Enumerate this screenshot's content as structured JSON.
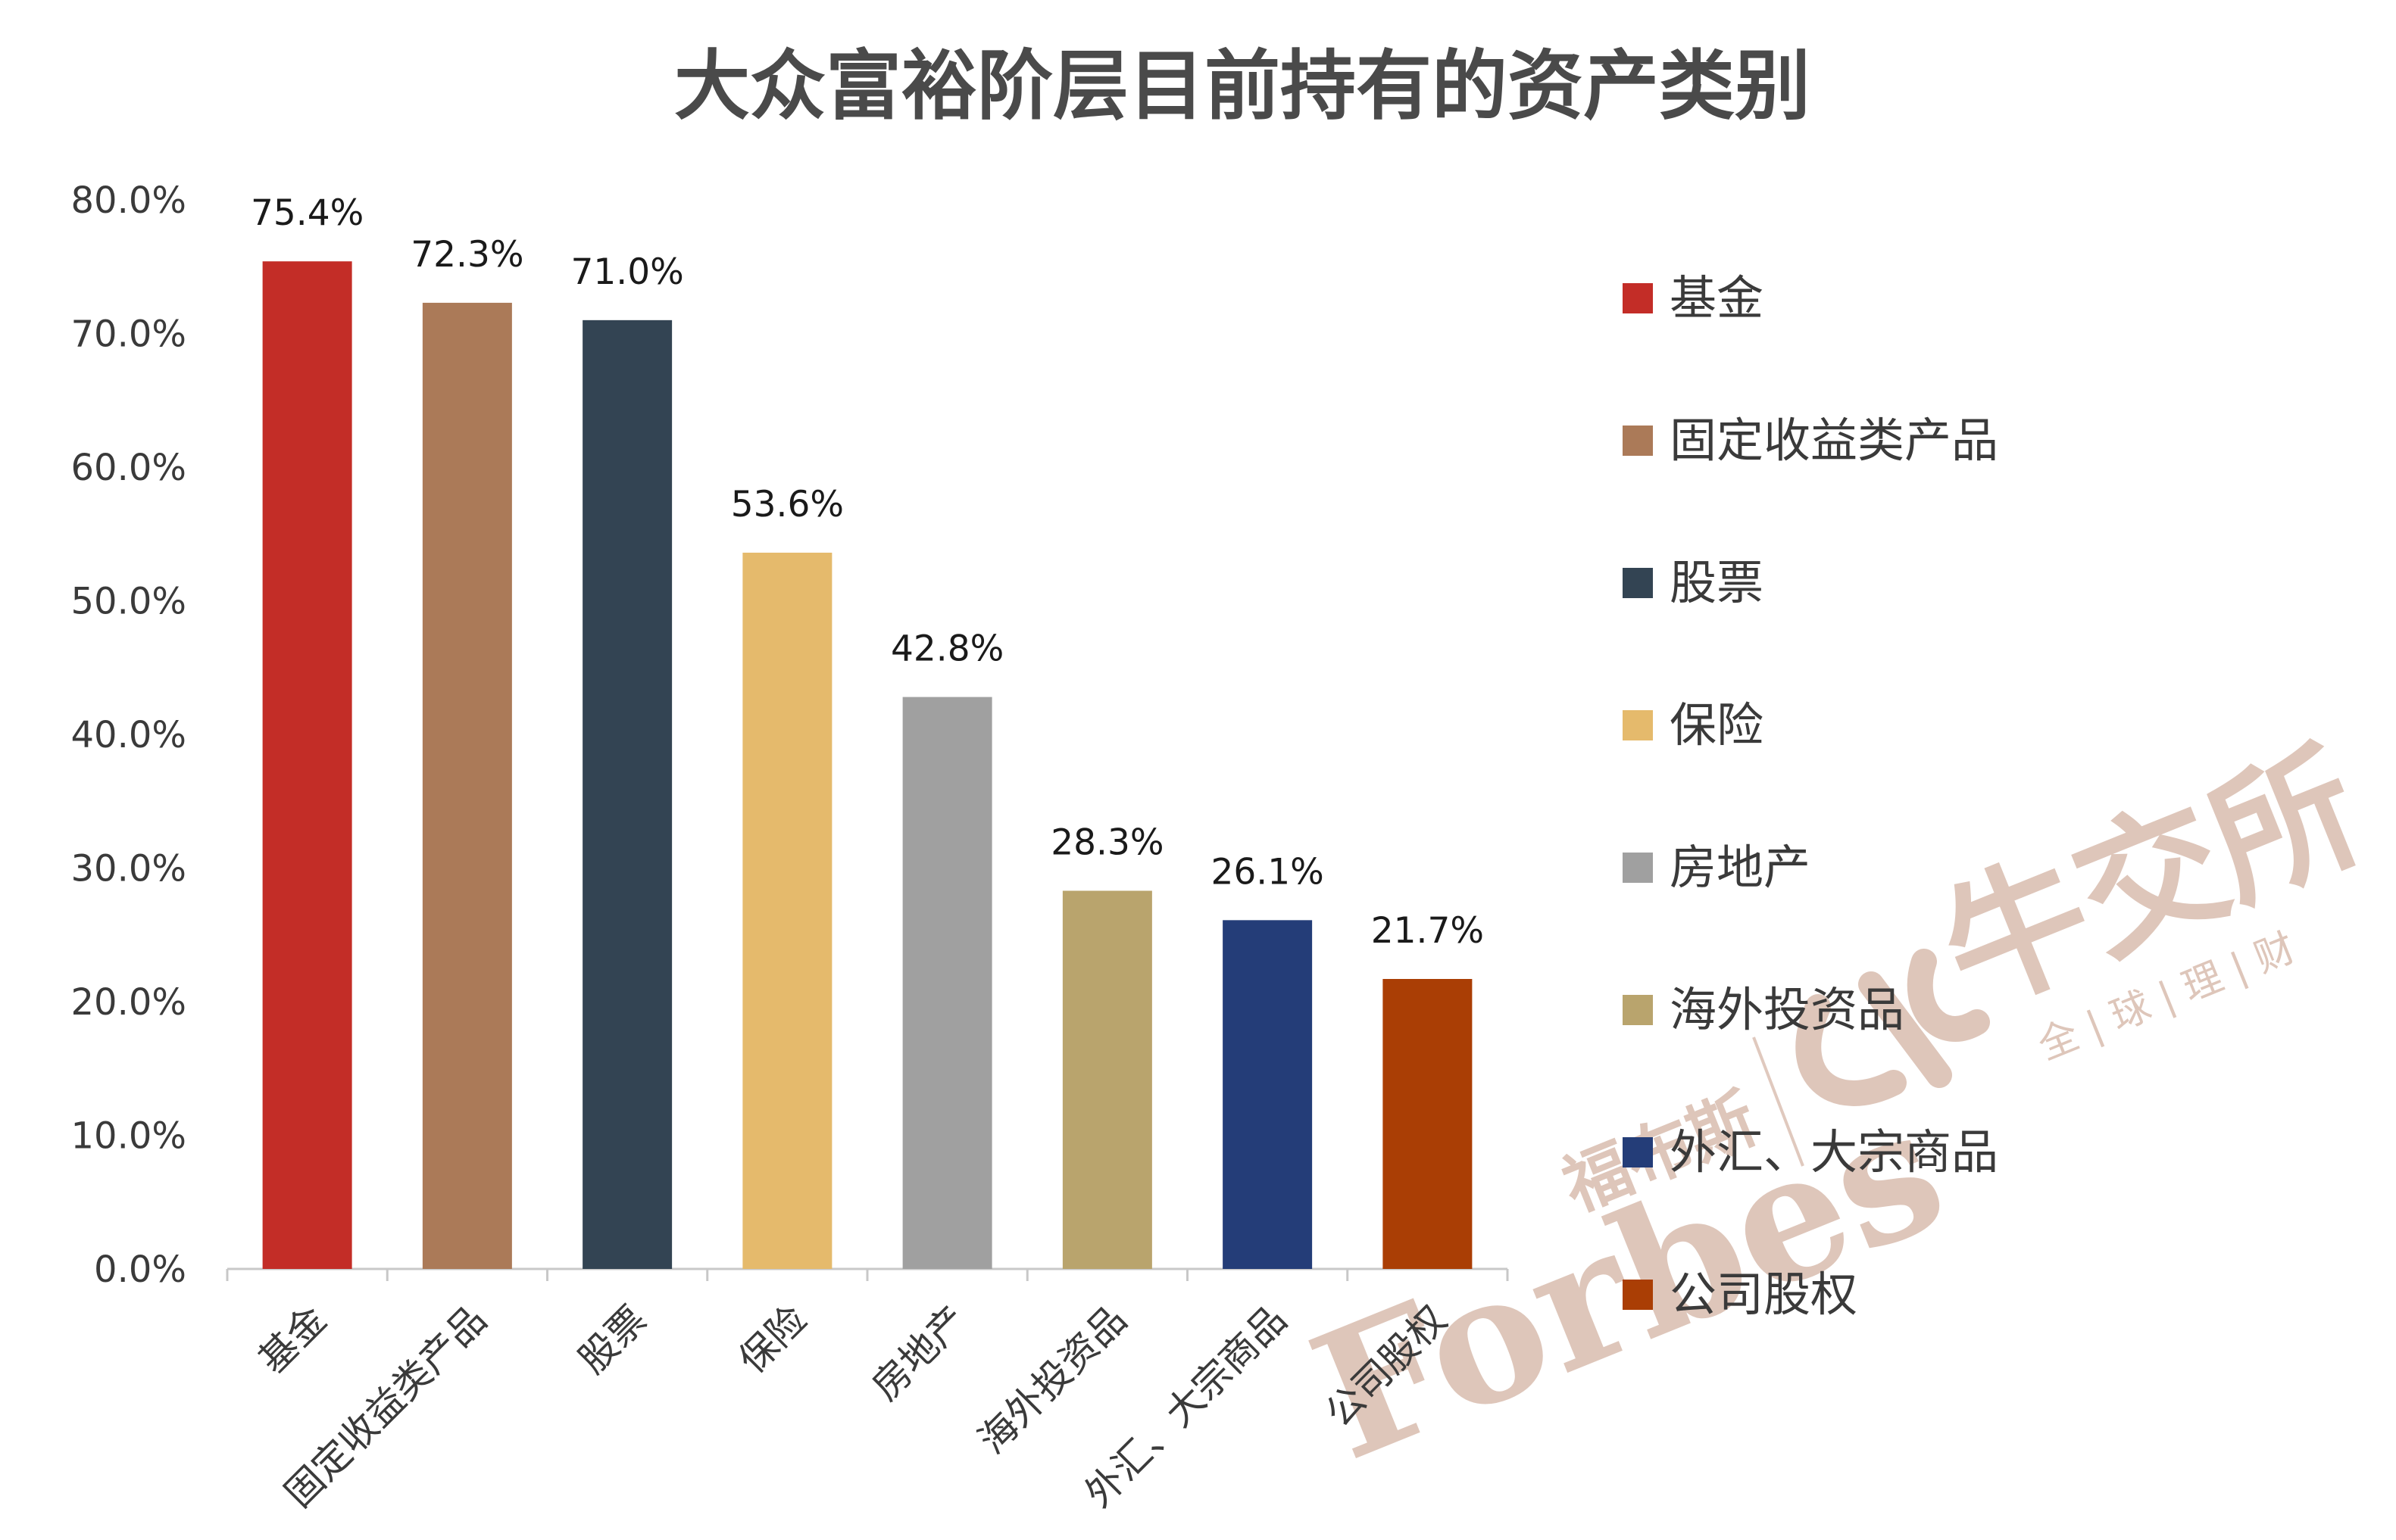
{
  "chart_data": {
    "type": "bar",
    "title": "大众富裕阶层目前持有的资产类别",
    "xlabel": "",
    "ylabel": "",
    "ylim": [
      0,
      80
    ],
    "y_ticks": [
      "0.0%",
      "10.0%",
      "20.0%",
      "30.0%",
      "40.0%",
      "50.0%",
      "60.0%",
      "70.0%",
      "80.0%"
    ],
    "grid": false,
    "legend_position": "right",
    "categories": [
      "基金",
      "固定收益类产品",
      "股票",
      "保险",
      "房地产",
      "海外投资品",
      "外汇、大宗商品",
      "公司股权"
    ],
    "values": [
      75.4,
      72.3,
      71.0,
      53.6,
      42.8,
      28.3,
      26.1,
      21.7
    ],
    "value_labels": [
      "75.4%",
      "72.3%",
      "71.0%",
      "53.6%",
      "42.8%",
      "28.3%",
      "26.1%",
      "21.7%"
    ],
    "colors": [
      "#C32D27",
      "#AB7A58",
      "#334453",
      "#E5BA6C",
      "#A0A0A0",
      "#B9A46D",
      "#243D78",
      "#AA3E05"
    ]
  },
  "watermark": {
    "brand_en": "Forbes",
    "brand_cn": "福布斯",
    "partner_cn": "牛交所",
    "partner_sub": "全 | 球 | 理 | 财",
    "color": "#D8BCAE"
  },
  "colors": {
    "text": "#3a3a3a",
    "title": "#4a4a4a",
    "axis": "#c8c8c8"
  }
}
